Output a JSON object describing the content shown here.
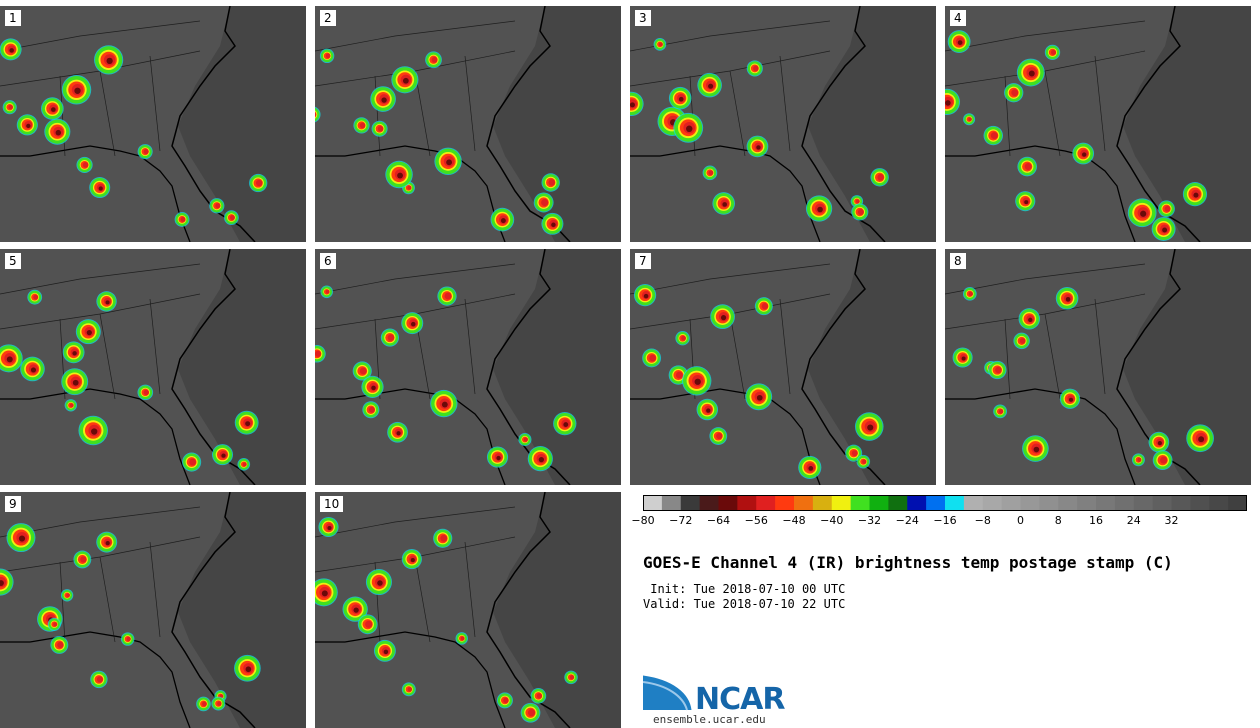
{
  "panels": [
    "1",
    "2",
    "3",
    "4",
    "5",
    "6",
    "7",
    "8",
    "9",
    "10"
  ],
  "colorbar": {
    "colors": [
      "#cfcfcf",
      "#888888",
      "#3a3a3a",
      "#4a1a1a",
      "#6a0a0a",
      "#b01010",
      "#e02020",
      "#ff3a10",
      "#f07010",
      "#d8b010",
      "#f0f010",
      "#40e020",
      "#10b010",
      "#107010",
      "#0010b0",
      "#0070f0",
      "#10e0f0",
      "#b0b0b0",
      "#a8a8a8",
      "#a0a0a0",
      "#989898",
      "#909090",
      "#888888",
      "#808080",
      "#787878",
      "#707070",
      "#686868",
      "#606060",
      "#585858",
      "#505050",
      "#484848",
      "#404040"
    ],
    "ticks": [
      "−80",
      "−72",
      "−64",
      "−56",
      "−48",
      "−40",
      "−32",
      "−24",
      "−16",
      "−8",
      "0",
      "8",
      "16",
      "24",
      "32"
    ]
  },
  "title": "GOES-E Channel 4 (IR) brightness temp postage stamp (C)",
  "init": " Init: Tue 2018-07-10 00 UTC",
  "valid": "Valid: Tue 2018-07-10 22 UTC",
  "logo": {
    "name": "NCAR",
    "url": "ensemble.ucar.edu"
  }
}
